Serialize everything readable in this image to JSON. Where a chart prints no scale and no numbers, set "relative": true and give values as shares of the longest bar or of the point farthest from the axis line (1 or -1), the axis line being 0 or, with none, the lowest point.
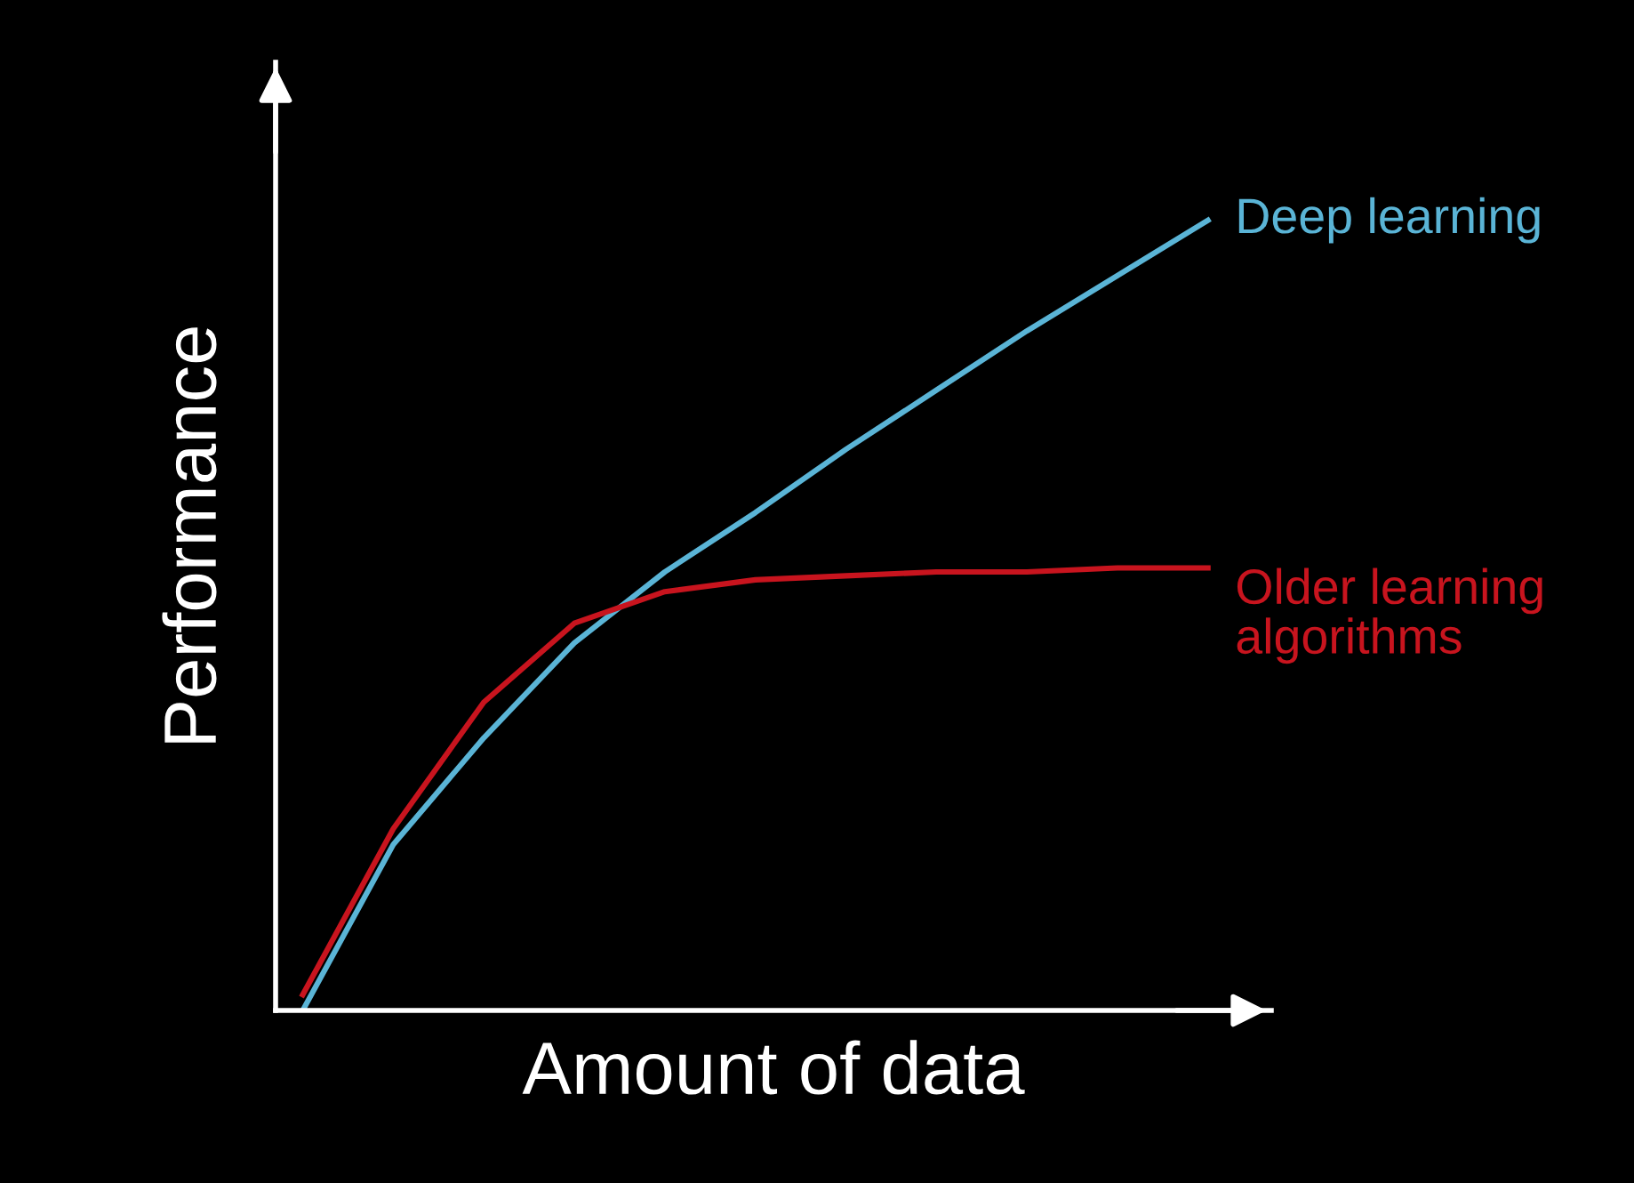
{
  "chart_data": {
    "type": "line",
    "xlabel": "Amount of data",
    "ylabel": "Performance",
    "relative": true,
    "legend": false,
    "marker": "none",
    "line_style": "solid",
    "categories": [
      null,
      null,
      null,
      null,
      null,
      null,
      null,
      null,
      null,
      null,
      null
    ],
    "series": [
      {
        "name": "Deep learning",
        "color": "#5ab4d6",
        "values": [
          0,
          0.21,
          0.345,
          0.465,
          0.555,
          0.63,
          0.71,
          0.785,
          0.86,
          0.93,
          1
        ]
      },
      {
        "name": "Older learning algorithms",
        "color": "#c8141e",
        "values": [
          0.02,
          0.23,
          0.39,
          0.49,
          0.53,
          0.545,
          0.55,
          0.555,
          0.555,
          0.56,
          0.56
        ]
      }
    ]
  }
}
